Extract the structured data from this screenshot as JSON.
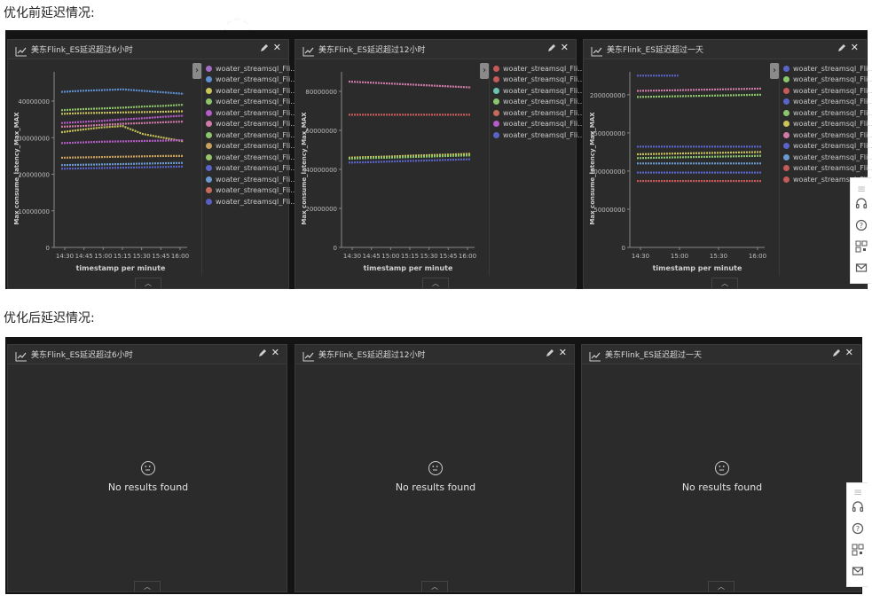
{
  "section_before": "优化前延迟情况:",
  "section_after": "优化后延迟情况:",
  "panels_before": [
    {
      "title": "美东Flink_ES延迟超过6小时",
      "ylabel": "Max consume_latency_Max_MAX",
      "xlabel": "timestamp per minute",
      "yticks": [
        "40000000",
        "30000000",
        "20000000",
        "10000000",
        "0"
      ],
      "xticks": [
        "14:30",
        "14:45",
        "15:00",
        "15:15",
        "15:30",
        "15:45",
        "16:00"
      ],
      "legend": [
        {
          "label": "woater_streamsql_Fli...",
          "color": "#a46bc4"
        },
        {
          "label": "woater_streamsql_Fli...",
          "color": "#5e8fd0"
        },
        {
          "label": "woater_streamsql_Fli...",
          "color": "#c9c35a"
        },
        {
          "label": "woater_streamsql_Fli...",
          "color": "#8fc56a"
        },
        {
          "label": "woater_streamsql_Fli...",
          "color": "#b45cc7"
        },
        {
          "label": "woater_streamsql_Fli...",
          "color": "#d07aa8"
        },
        {
          "label": "woater_streamsql_Fli...",
          "color": "#8cc66c"
        },
        {
          "label": "woater_streamsql_Fli...",
          "color": "#c9a15a"
        },
        {
          "label": "woater_streamsql_Fli...",
          "color": "#9ac46a"
        },
        {
          "label": "woater_streamsql_Fli...",
          "color": "#5a63c7"
        },
        {
          "label": "woater_streamsql_Fli...",
          "color": "#6a9ad0"
        },
        {
          "label": "woater_streamsql_Fli...",
          "color": "#c76a5a"
        },
        {
          "label": "woater_streamsql_Fli...",
          "color": "#5a5ec2"
        }
      ]
    },
    {
      "title": "美东Flink_ES延迟超过12小时",
      "ylabel": "Max consume_latency_Max_MAX",
      "xlabel": "timestamp per minute",
      "yticks": [
        "80000000",
        "60000000",
        "40000000",
        "20000000",
        "0"
      ],
      "xticks": [
        "14:30",
        "14:45",
        "15:00",
        "15:15",
        "15:30",
        "15:45",
        "16:00"
      ],
      "legend": [
        {
          "label": "woater_streamsql_Fli...",
          "color": "#c45a5a"
        },
        {
          "label": "woater_streamsql_Fli...",
          "color": "#c45a5a"
        },
        {
          "label": "woater_streamsql_Fli...",
          "color": "#6ac4b0"
        },
        {
          "label": "woater_streamsql_Fli...",
          "color": "#8cc66c"
        },
        {
          "label": "woater_streamsql_Fli...",
          "color": "#c46a5a"
        },
        {
          "label": "woater_streamsql_Fli...",
          "color": "#b45cc7"
        },
        {
          "label": "woater_streamsql_Fli...",
          "color": "#5a63c7"
        }
      ]
    },
    {
      "title": "美东Flink_ES延迟超过一天",
      "ylabel": "Max consume_latency_Max_MAX",
      "xlabel": "timestamp per minute",
      "yticks": [
        "200000000",
        "150000000",
        "100000000",
        "50000000",
        "0"
      ],
      "xticks": [
        "14:30",
        "15:00",
        "15:30",
        "16:00"
      ],
      "legend": [
        {
          "label": "woater_streamsql_Fli...",
          "color": "#5a63c7"
        },
        {
          "label": "woater_streamsql_Fli...",
          "color": "#8cc66c"
        },
        {
          "label": "woater_streamsql_Fli...",
          "color": "#c45a5a"
        },
        {
          "label": "woater_streamsql_Fli...",
          "color": "#5a63c7"
        },
        {
          "label": "woater_streamsql_Fli...",
          "color": "#8cc66c"
        },
        {
          "label": "woater_streamsql_Fli...",
          "color": "#c9c35a"
        },
        {
          "label": "woater_streamsql_Fli...",
          "color": "#d07aa8"
        },
        {
          "label": "woater_streamsql_Fli...",
          "color": "#5a63c7"
        },
        {
          "label": "woater_streamsql_Fli...",
          "color": "#6a9ad0"
        },
        {
          "label": "woater_streamsql_Fli...",
          "color": "#c45a5a"
        },
        {
          "label": "woater_streamsql_Fli...",
          "color": "#c45a5a"
        }
      ]
    }
  ],
  "panels_after": [
    {
      "title": "美东Flink_ES延迟超过6小时",
      "empty_text": "No results found"
    },
    {
      "title": "美东Flink_ES延迟超过12小时",
      "empty_text": "No results found"
    },
    {
      "title": "美东Flink_ES延迟超过一天",
      "empty_text": "No results found"
    }
  ],
  "chart_data": [
    {
      "type": "line",
      "title": "美东Flink_ES延迟超过6小时",
      "xlabel": "timestamp per minute",
      "ylabel": "Max consume_latency_Max_MAX",
      "ylim": [
        0,
        48000000
      ],
      "x": [
        "14:30",
        "14:45",
        "15:00",
        "15:15",
        "15:30",
        "15:45",
        "16:00"
      ],
      "series": [
        {
          "color": "#5e8fd0",
          "values": [
            42500000,
            42800000,
            43000000,
            43200000,
            42800000,
            42400000,
            42000000
          ]
        },
        {
          "color": "#8fc56a",
          "values": [
            37500000,
            37800000,
            38000000,
            38200000,
            38500000,
            38700000,
            39000000
          ]
        },
        {
          "color": "#c9c35a",
          "values": [
            36500000,
            36700000,
            36800000,
            36900000,
            37000000,
            37100000,
            37200000
          ]
        },
        {
          "color": "#b45cc7",
          "values": [
            34000000,
            34300000,
            34600000,
            35000000,
            35300000,
            35700000,
            36000000
          ]
        },
        {
          "color": "#d07aa8",
          "values": [
            33000000,
            33200000,
            33500000,
            33800000,
            34000000,
            34200000,
            34400000
          ]
        },
        {
          "color": "#c9c35a",
          "values": [
            31500000,
            32200000,
            32800000,
            33200000,
            31000000,
            30000000,
            29000000
          ]
        },
        {
          "color": "#b45cc7",
          "values": [
            28500000,
            28700000,
            28900000,
            29000000,
            29100000,
            29200000,
            29300000
          ]
        },
        {
          "color": "#c9a15a",
          "values": [
            24500000,
            24600000,
            24700000,
            24800000,
            24900000,
            25000000,
            25000000
          ]
        },
        {
          "color": "#6a9ad0",
          "values": [
            22500000,
            22600000,
            22700000,
            22800000,
            22900000,
            23000000,
            23100000
          ]
        },
        {
          "color": "#5a63c7",
          "values": [
            21500000,
            21600000,
            21700000,
            21800000,
            21900000,
            22000000,
            22100000
          ]
        }
      ]
    },
    {
      "type": "line",
      "title": "美东Flink_ES延迟超过12小时",
      "xlabel": "timestamp per minute",
      "ylabel": "Max consume_latency_Max_MAX",
      "ylim": [
        0,
        90000000
      ],
      "x": [
        "14:30",
        "14:45",
        "15:00",
        "15:15",
        "15:30",
        "15:45",
        "16:00"
      ],
      "series": [
        {
          "color": "#d07aa8",
          "values": [
            85000000,
            84500000,
            84000000,
            83500000,
            83000000,
            82500000,
            82000000
          ]
        },
        {
          "color": "#c45a5a",
          "values": [
            68000000,
            68000000,
            68000000,
            68000000,
            68000000,
            68000000,
            68000000
          ]
        },
        {
          "color": "#c9c35a",
          "values": [
            46000000,
            46300000,
            46600000,
            47000000,
            47300000,
            47600000,
            48000000
          ]
        },
        {
          "color": "#8cc66c",
          "values": [
            45500000,
            45800000,
            46000000,
            46300000,
            46600000,
            46900000,
            47200000
          ]
        },
        {
          "color": "#5a63c7",
          "values": [
            43500000,
            43700000,
            44000000,
            44300000,
            44600000,
            44900000,
            45200000
          ]
        }
      ]
    },
    {
      "type": "line",
      "title": "美东Flink_ES延迟超过一天",
      "xlabel": "timestamp per minute",
      "ylabel": "Max consume_latency_Max_MAX",
      "ylim": [
        0,
        230000000
      ],
      "x": [
        "14:30",
        "15:00",
        "15:30",
        "16:00"
      ],
      "series": [
        {
          "color": "#5a63c7",
          "values": [
            225000000,
            225000000,
            null,
            null
          ]
        },
        {
          "color": "#d07aa8",
          "values": [
            205000000,
            206000000,
            207000000,
            208000000
          ]
        },
        {
          "color": "#8cc66c",
          "values": [
            197000000,
            198000000,
            199000000,
            200000000
          ]
        },
        {
          "color": "#5a63c7",
          "values": [
            132000000,
            132000000,
            132000000,
            132000000
          ]
        },
        {
          "color": "#c9c35a",
          "values": [
            122000000,
            123000000,
            124000000,
            125000000
          ]
        },
        {
          "color": "#8cc66c",
          "values": [
            117000000,
            118000000,
            119000000,
            120000000
          ]
        },
        {
          "color": "#6a9ad0",
          "values": [
            110000000,
            110000000,
            110000000,
            110000000
          ]
        },
        {
          "color": "#5a63c7",
          "values": [
            98000000,
            98000000,
            98000000,
            98000000
          ]
        },
        {
          "color": "#c45a5a",
          "values": [
            87000000,
            87000000,
            87000000,
            87000000
          ]
        }
      ]
    }
  ]
}
